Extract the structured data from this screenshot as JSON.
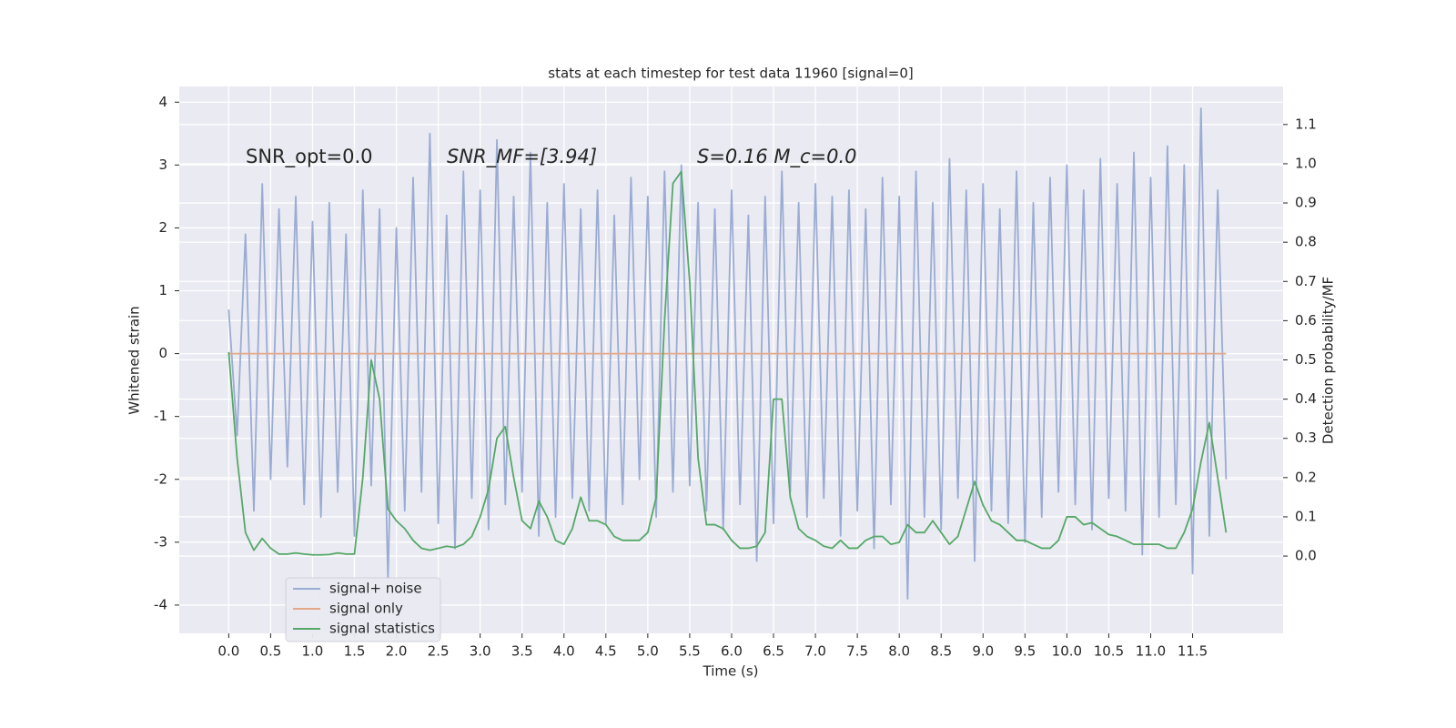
{
  "chart_data": {
    "type": "line",
    "title": "stats at each timestep for test data 11960 [signal=0]",
    "xlabel": "Time (s)",
    "ylabel": "Whitened strain",
    "y2label": "Detection probability/MF",
    "annotations": [
      "SNR_opt=0.0",
      "SNR_MF=[3.94]",
      "S=0.16   M_c=0.0"
    ],
    "grid": true,
    "legend": "lower left",
    "xlim": [
      -0.59,
      12.58
    ],
    "ylim": [
      -4.45,
      4.25
    ],
    "y2lim": [
      -0.197,
      1.197
    ],
    "xticks": [
      {
        "value": 0,
        "label": "0.0"
      },
      {
        "value": 0.5,
        "label": "0.5"
      },
      {
        "value": 1,
        "label": "1.0"
      },
      {
        "value": 1.5,
        "label": "1.5"
      },
      {
        "value": 2,
        "label": "2.0"
      },
      {
        "value": 2.5,
        "label": "2.5"
      },
      {
        "value": 3,
        "label": "3.0"
      },
      {
        "value": 3.5,
        "label": "3.5"
      },
      {
        "value": 4,
        "label": "4.0"
      },
      {
        "value": 4.5,
        "label": "4.5"
      },
      {
        "value": 5,
        "label": "5.0"
      },
      {
        "value": 5.5,
        "label": "5.5"
      },
      {
        "value": 6,
        "label": "6.0"
      },
      {
        "value": 6.5,
        "label": "6.5"
      },
      {
        "value": 7,
        "label": "7.0"
      },
      {
        "value": 7.5,
        "label": "7.5"
      },
      {
        "value": 8,
        "label": "8.0"
      },
      {
        "value": 8.5,
        "label": "8.5"
      },
      {
        "value": 9,
        "label": "9.0"
      },
      {
        "value": 9.5,
        "label": "9.5"
      },
      {
        "value": 10,
        "label": "10.0"
      },
      {
        "value": 10.5,
        "label": "10.5"
      },
      {
        "value": 11,
        "label": "11.0"
      },
      {
        "value": 11.5,
        "label": "11.5"
      }
    ],
    "yticks": [
      4,
      3,
      2,
      1,
      0,
      -1,
      -2,
      -3,
      -4
    ],
    "y2ticks": [
      {
        "value": 0,
        "label": "0.0"
      },
      {
        "value": 0.1,
        "label": "0.1"
      },
      {
        "value": 0.2,
        "label": "0.2"
      },
      {
        "value": 0.3,
        "label": "0.3"
      },
      {
        "value": 0.4,
        "label": "0.4"
      },
      {
        "value": 0.5,
        "label": "0.5"
      },
      {
        "value": 0.6,
        "label": "0.6"
      },
      {
        "value": 0.7,
        "label": "0.7"
      },
      {
        "value": 0.8,
        "label": "0.8"
      },
      {
        "value": 0.9,
        "label": "0.9"
      },
      {
        "value": 1,
        "label": "1.0"
      },
      {
        "value": 1.1,
        "label": "1.1"
      }
    ],
    "x": [
      0,
      0.1,
      0.2,
      0.3,
      0.4,
      0.5,
      0.6,
      0.7,
      0.8,
      0.9,
      1,
      1.1,
      1.2,
      1.3,
      1.4,
      1.5,
      1.6,
      1.7,
      1.8,
      1.9,
      2,
      2.1,
      2.2,
      2.3,
      2.4,
      2.5,
      2.6,
      2.7,
      2.8,
      2.9,
      3,
      3.1,
      3.2,
      3.3,
      3.4,
      3.5,
      3.6,
      3.7,
      3.8,
      3.9,
      4,
      4.1,
      4.2,
      4.3,
      4.4,
      4.5,
      4.6,
      4.7,
      4.8,
      4.9,
      5,
      5.1,
      5.2,
      5.3,
      5.4,
      5.5,
      5.6,
      5.7,
      5.8,
      5.9,
      6,
      6.1,
      6.2,
      6.3,
      6.4,
      6.5,
      6.6,
      6.7,
      6.8,
      6.9,
      7,
      7.1,
      7.2,
      7.3,
      7.4,
      7.5,
      7.6,
      7.7,
      7.8,
      7.9,
      8,
      8.1,
      8.2,
      8.3,
      8.4,
      8.5,
      8.6,
      8.7,
      8.8,
      8.9,
      9,
      9.1,
      9.2,
      9.3,
      9.4,
      9.5,
      9.6,
      9.7,
      9.8,
      9.9,
      10,
      10.1,
      10.2,
      10.3,
      10.4,
      10.5,
      10.6,
      10.7,
      10.8,
      10.9,
      11,
      11.1,
      11.2,
      11.3,
      11.4,
      11.5,
      11.6,
      11.7,
      11.8,
      11.9
    ],
    "series": [
      {
        "name": "signal+ noise",
        "color": "#9aacd3",
        "values": [
          0.7,
          -1.3,
          1.9,
          -2.5,
          2.7,
          -2.0,
          2.3,
          -1.8,
          2.5,
          -2.4,
          2.1,
          -2.6,
          2.4,
          -2.2,
          1.9,
          -2.9,
          2.6,
          -2.1,
          2.3,
          -3.6,
          2.0,
          -2.5,
          2.8,
          -2.2,
          3.5,
          -2.7,
          2.2,
          -3.1,
          2.9,
          -2.3,
          2.6,
          -2.8,
          3.4,
          -2.4,
          2.5,
          -2.2,
          3.2,
          -2.9,
          2.4,
          -2.6,
          2.7,
          -2.3,
          2.3,
          -2.5,
          2.6,
          -2.7,
          2.2,
          -2.4,
          2.8,
          -2.0,
          2.5,
          -2.6,
          2.9,
          -2.2,
          3.0,
          -2.1,
          2.4,
          -2.5,
          2.3,
          -2.8,
          2.6,
          -2.4,
          2.2,
          -3.3,
          2.5,
          -2.7,
          2.9,
          -2.2,
          2.4,
          -2.6,
          2.7,
          -2.3,
          2.5,
          -2.9,
          2.6,
          -2.5,
          2.3,
          -3.1,
          2.8,
          -2.4,
          2.5,
          -3.9,
          2.9,
          -2.6,
          2.4,
          -2.8,
          3.1,
          -2.3,
          2.6,
          -3.3,
          2.7,
          -2.5,
          2.3,
          -2.7,
          2.9,
          -3.0,
          2.4,
          -2.6,
          2.8,
          -2.2,
          3.0,
          -2.4,
          2.6,
          -2.8,
          3.1,
          -2.3,
          2.7,
          -2.5,
          3.2,
          -3.2,
          2.8,
          -2.6,
          3.3,
          -2.4,
          3.0,
          -3.5,
          3.9,
          -2.9,
          2.6,
          -2.0
        ]
      },
      {
        "name": "signal only",
        "color": "#e3a889",
        "values": [
          0,
          0,
          0,
          0,
          0,
          0,
          0,
          0,
          0,
          0,
          0,
          0,
          0,
          0,
          0,
          0,
          0,
          0,
          0,
          0,
          0,
          0,
          0,
          0,
          0,
          0,
          0,
          0,
          0,
          0,
          0,
          0,
          0,
          0,
          0,
          0,
          0,
          0,
          0,
          0,
          0,
          0,
          0,
          0,
          0,
          0,
          0,
          0,
          0,
          0,
          0,
          0,
          0,
          0,
          0,
          0,
          0,
          0,
          0,
          0,
          0,
          0,
          0,
          0,
          0,
          0,
          0,
          0,
          0,
          0,
          0,
          0,
          0,
          0,
          0,
          0,
          0,
          0,
          0,
          0,
          0,
          0,
          0,
          0,
          0,
          0,
          0,
          0,
          0,
          0,
          0,
          0,
          0,
          0,
          0,
          0,
          0,
          0,
          0,
          0,
          0,
          0,
          0,
          0,
          0,
          0,
          0,
          0,
          0,
          0,
          0,
          0,
          0,
          0,
          0,
          0,
          0,
          0,
          0,
          0
        ]
      },
      {
        "name": "signal statistics",
        "color": "#55a868",
        "axis": "y2",
        "values": [
          0.52,
          0.25,
          0.06,
          0.015,
          0.045,
          0.02,
          0.005,
          0.005,
          0.008,
          0.005,
          0.003,
          0.003,
          0.004,
          0.008,
          0.005,
          0.005,
          0.2,
          0.5,
          0.4,
          0.12,
          0.09,
          0.07,
          0.04,
          0.02,
          0.015,
          0.02,
          0.025,
          0.022,
          0.03,
          0.05,
          0.1,
          0.17,
          0.3,
          0.33,
          0.2,
          0.09,
          0.07,
          0.14,
          0.1,
          0.04,
          0.03,
          0.07,
          0.15,
          0.09,
          0.09,
          0.08,
          0.05,
          0.04,
          0.04,
          0.04,
          0.06,
          0.15,
          0.6,
          0.95,
          0.98,
          0.7,
          0.25,
          0.08,
          0.08,
          0.07,
          0.04,
          0.02,
          0.02,
          0.025,
          0.06,
          0.4,
          0.4,
          0.15,
          0.07,
          0.05,
          0.04,
          0.025,
          0.02,
          0.04,
          0.02,
          0.02,
          0.04,
          0.05,
          0.05,
          0.03,
          0.035,
          0.08,
          0.06,
          0.06,
          0.09,
          0.06,
          0.03,
          0.05,
          0.12,
          0.19,
          0.13,
          0.09,
          0.08,
          0.06,
          0.04,
          0.04,
          0.03,
          0.02,
          0.02,
          0.04,
          0.1,
          0.1,
          0.08,
          0.085,
          0.07,
          0.055,
          0.05,
          0.04,
          0.03,
          0.03,
          0.03,
          0.03,
          0.02,
          0.02,
          0.06,
          0.12,
          0.24,
          0.34,
          0.2,
          0.06
        ]
      }
    ]
  }
}
